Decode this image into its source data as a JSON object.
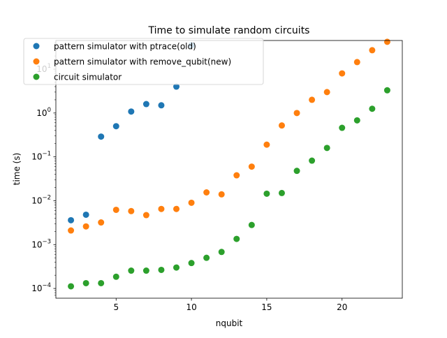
{
  "chart_data": {
    "type": "scatter",
    "title": "Time to simulate random circuits",
    "xlabel": "nqubit",
    "ylabel": "time (s)",
    "xlim": [
      1.0,
      24.0
    ],
    "ylim": [
      6e-05,
      45
    ],
    "yscale": "log",
    "grid": false,
    "legend_position": "upper-left",
    "x_ticks": [
      {
        "value": 5,
        "label": "5"
      },
      {
        "value": 10,
        "label": "10"
      },
      {
        "value": 15,
        "label": "15"
      },
      {
        "value": 20,
        "label": "20"
      }
    ],
    "y_ticks": [
      {
        "value": 0.0001,
        "base": "10",
        "exp": "−4"
      },
      {
        "value": 0.001,
        "base": "10",
        "exp": "−3"
      },
      {
        "value": 0.01,
        "base": "10",
        "exp": "−2"
      },
      {
        "value": 0.1,
        "base": "10",
        "exp": "−1"
      },
      {
        "value": 1,
        "base": "10",
        "exp": "0"
      },
      {
        "value": 10,
        "base": "10",
        "exp": "1"
      }
    ],
    "series": [
      {
        "name": "pattern simulator with ptrace(old)",
        "color": "#1f77b4",
        "x": [
          2,
          3,
          4,
          5,
          6,
          7,
          8,
          9,
          10
        ],
        "y": [
          0.0036,
          0.0048,
          0.29,
          0.5,
          1.08,
          1.6,
          1.5,
          4.0,
          35
        ]
      },
      {
        "name": "pattern simulator with remove_qubit(new)",
        "color": "#ff7f0e",
        "x": [
          2,
          3,
          4,
          5,
          6,
          7,
          8,
          9,
          10,
          11,
          12,
          13,
          14,
          15,
          16,
          17,
          18,
          19,
          20,
          21,
          22,
          23
        ],
        "y": [
          0.0021,
          0.0026,
          0.0032,
          0.0062,
          0.0058,
          0.0047,
          0.0065,
          0.0065,
          0.009,
          0.0155,
          0.014,
          0.038,
          0.06,
          0.19,
          0.52,
          1.0,
          2.0,
          3.0,
          8.0,
          14.5,
          27,
          42
        ]
      },
      {
        "name": "circuit simulator",
        "color": "#2ca02c",
        "x": [
          2,
          3,
          4,
          5,
          6,
          7,
          8,
          9,
          10,
          11,
          12,
          13,
          14,
          15,
          16,
          17,
          18,
          19,
          20,
          21,
          22,
          23
        ],
        "y": [
          0.000112,
          0.000132,
          0.000132,
          0.000185,
          0.000255,
          0.000255,
          0.000265,
          0.0003,
          0.00038,
          0.0005,
          0.00068,
          0.00135,
          0.0028,
          0.0145,
          0.015,
          0.048,
          0.082,
          0.16,
          0.46,
          0.68,
          1.25,
          3.3
        ]
      }
    ]
  }
}
